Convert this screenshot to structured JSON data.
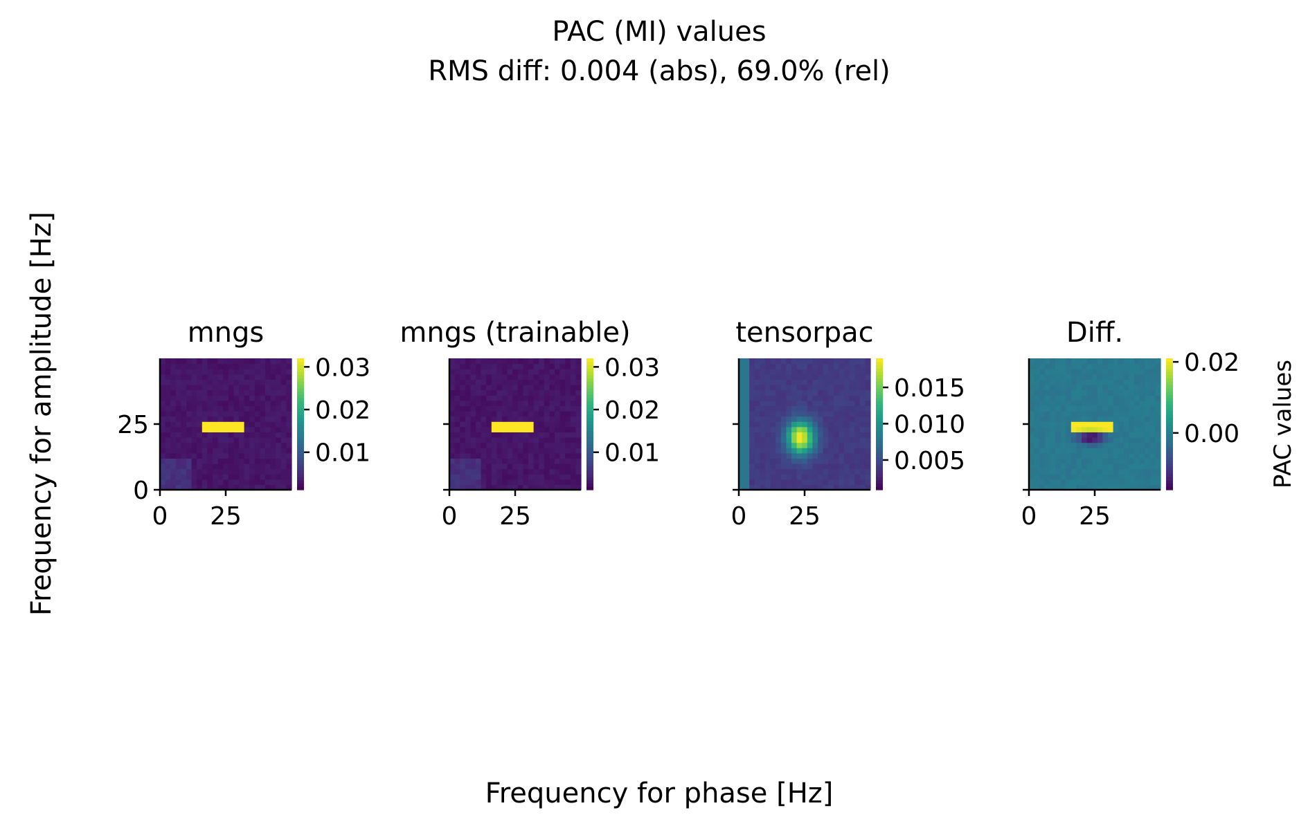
{
  "figure": {
    "title": "PAC (MI) values",
    "subtitle": "RMS diff: 0.004 (abs), 69.0% (rel)",
    "xlabel": "Frequency for phase [Hz]",
    "ylabel": "Frequency for amplitude [Hz]"
  },
  "chart_data": [
    {
      "type": "heatmap",
      "title": "mngs",
      "colormap": "viridis",
      "xlim": [
        0,
        50
      ],
      "ylim": [
        0,
        50
      ],
      "xticks": [
        "0",
        "25"
      ],
      "yticks": [
        "0",
        "25"
      ],
      "color_range": [
        0.0012,
        0.032
      ],
      "colorbar_ticks": [
        {
          "value": 0.01,
          "label": "0.01"
        },
        {
          "value": 0.02,
          "label": "0.02"
        },
        {
          "value": 0.03,
          "label": "0.03"
        }
      ],
      "background": 0.003,
      "features": [
        {
          "shape": "bar",
          "x": [
            16,
            32
          ],
          "y": [
            23,
            26
          ],
          "value": 0.032
        },
        {
          "shape": "patch",
          "x": [
            0,
            12
          ],
          "y": [
            0,
            12
          ],
          "value": 0.0055
        }
      ]
    },
    {
      "type": "heatmap",
      "title": "mngs (trainable)",
      "colormap": "viridis",
      "xlim": [
        0,
        50
      ],
      "ylim": [
        0,
        50
      ],
      "xticks": [
        "0",
        "25"
      ],
      "yticks": [],
      "color_range": [
        0.0012,
        0.032
      ],
      "colorbar_ticks": [
        {
          "value": 0.01,
          "label": "0.01"
        },
        {
          "value": 0.02,
          "label": "0.02"
        },
        {
          "value": 0.03,
          "label": "0.03"
        }
      ],
      "background": 0.003,
      "features": [
        {
          "shape": "bar",
          "x": [
            16,
            32
          ],
          "y": [
            23,
            26
          ],
          "value": 0.032
        },
        {
          "shape": "patch",
          "x": [
            0,
            12
          ],
          "y": [
            0,
            12
          ],
          "value": 0.0055
        }
      ]
    },
    {
      "type": "heatmap",
      "title": "tensorpac",
      "colormap": "viridis",
      "xlim": [
        0,
        50
      ],
      "ylim": [
        0,
        50
      ],
      "xticks": [
        "0",
        "25"
      ],
      "yticks": [],
      "color_range": [
        0.0009,
        0.019
      ],
      "colorbar_ticks": [
        {
          "value": 0.005,
          "label": "0.005"
        },
        {
          "value": 0.01,
          "label": "0.010"
        },
        {
          "value": 0.015,
          "label": "0.015"
        }
      ],
      "background": 0.004,
      "features": [
        {
          "shape": "blob",
          "x": [
            17,
            30
          ],
          "y": [
            12,
            28
          ],
          "value": 0.019
        },
        {
          "shape": "strip",
          "x": [
            0,
            3
          ],
          "y": [
            0,
            50
          ],
          "value": 0.008
        }
      ]
    },
    {
      "type": "heatmap",
      "title": "Diff.",
      "colormap": "viridis",
      "xlim": [
        0,
        50
      ],
      "ylim": [
        0,
        50
      ],
      "xticks": [
        "0",
        "25"
      ],
      "yticks": [],
      "color_range": [
        -0.016,
        0.021
      ],
      "colorbar_label": "PAC values",
      "colorbar_ticks": [
        {
          "value": 0.0,
          "label": "0.00"
        },
        {
          "value": 0.02,
          "label": "0.02"
        }
      ],
      "background": -0.001,
      "features": [
        {
          "shape": "bar",
          "x": [
            16,
            32
          ],
          "y": [
            23,
            26
          ],
          "value": 0.021
        },
        {
          "shape": "blob-neg",
          "x": [
            17,
            30
          ],
          "y": [
            17,
            23
          ],
          "value": -0.016
        }
      ]
    }
  ]
}
